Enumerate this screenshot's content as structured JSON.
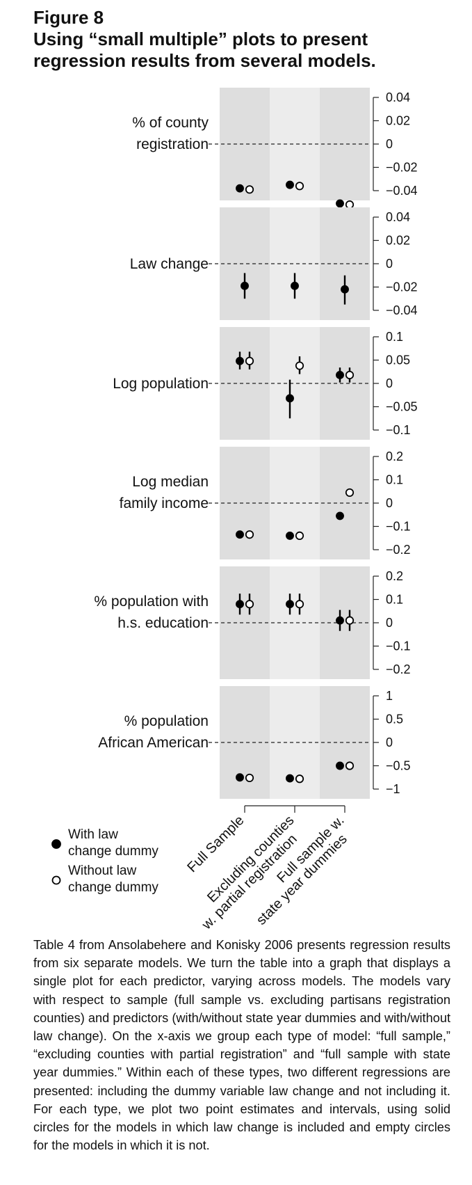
{
  "figure": {
    "label": "Figure 8",
    "title": "Using “small multiple” plots to present regression results from several models."
  },
  "chart_data": {
    "type": "scatter",
    "model_groups": [
      "Full Sample",
      "Excluding counties w. partial registration",
      "Full sample w. state year dummies"
    ],
    "legend": [
      {
        "name": "With law change dummy",
        "marker": "filled-circle"
      },
      {
        "name": "Without law change dummy",
        "marker": "open-circle"
      }
    ],
    "panels": [
      {
        "label": [
          "% of county",
          "registration"
        ],
        "ylim": [
          -0.04,
          0.04
        ],
        "ticks": [
          0.04,
          0.02,
          0,
          -0.02,
          -0.04
        ],
        "tick_labels": [
          "0.04",
          "0.02",
          "0",
          "−0.02",
          "−0.04"
        ],
        "with_dummy": [
          {
            "est": -0.038,
            "lo": -0.041,
            "hi": -0.035
          },
          {
            "est": -0.035,
            "lo": -0.038,
            "hi": -0.032
          },
          {
            "est": -0.051,
            "lo": -0.054,
            "hi": -0.048
          }
        ],
        "without_dummy": [
          {
            "est": -0.039,
            "lo": -0.042,
            "hi": -0.036
          },
          {
            "est": -0.036,
            "lo": -0.039,
            "hi": -0.033
          },
          {
            "est": -0.052,
            "lo": -0.055,
            "hi": -0.049
          }
        ]
      },
      {
        "label": [
          "Law change"
        ],
        "ylim": [
          -0.04,
          0.04
        ],
        "ticks": [
          0.04,
          0.02,
          0,
          -0.02,
          -0.04
        ],
        "tick_labels": [
          "0.04",
          "0.02",
          "0",
          "−0.02",
          "−0.04"
        ],
        "with_dummy": [
          {
            "est": -0.019,
            "lo": -0.03,
            "hi": -0.008
          },
          {
            "est": -0.019,
            "lo": -0.03,
            "hi": -0.008
          },
          {
            "est": -0.022,
            "lo": -0.035,
            "hi": -0.01
          }
        ],
        "without_dummy": []
      },
      {
        "label": [
          "Log population"
        ],
        "ylim": [
          -0.1,
          0.1
        ],
        "ticks": [
          0.1,
          0.05,
          0,
          -0.05,
          -0.1
        ],
        "tick_labels": [
          "0.1",
          "0.05",
          "0",
          "−0.05",
          "−0.1"
        ],
        "with_dummy": [
          {
            "est": 0.048,
            "lo": 0.03,
            "hi": 0.068
          },
          {
            "est": -0.032,
            "lo": -0.075,
            "hi": 0.008
          },
          {
            "est": 0.018,
            "lo": 0.002,
            "hi": 0.034
          }
        ],
        "without_dummy": [
          {
            "est": 0.048,
            "lo": 0.03,
            "hi": 0.068
          },
          {
            "est": 0.038,
            "lo": 0.02,
            "hi": 0.058
          },
          {
            "est": 0.018,
            "lo": 0.002,
            "hi": 0.034
          }
        ]
      },
      {
        "label": [
          "Log median",
          "family income"
        ],
        "ylim": [
          -0.2,
          0.2
        ],
        "ticks": [
          0.2,
          0.1,
          0,
          -0.1,
          -0.2
        ],
        "tick_labels": [
          "0.2",
          "0.1",
          "0",
          "−0.1",
          "−0.2"
        ],
        "with_dummy": [
          {
            "est": -0.135,
            "lo": -0.148,
            "hi": -0.122
          },
          {
            "est": -0.14,
            "lo": -0.153,
            "hi": -0.127
          },
          {
            "est": -0.055,
            "lo": -0.068,
            "hi": -0.042
          }
        ],
        "without_dummy": [
          {
            "est": -0.135,
            "lo": -0.148,
            "hi": -0.122
          },
          {
            "est": -0.14,
            "lo": -0.153,
            "hi": -0.127
          },
          {
            "est": 0.045,
            "lo": 0.03,
            "hi": 0.06
          }
        ]
      },
      {
        "label": [
          "% population with",
          "h.s. education"
        ],
        "ylim": [
          -0.2,
          0.2
        ],
        "ticks": [
          0.2,
          0.1,
          0,
          -0.1,
          -0.2
        ],
        "tick_labels": [
          "0.2",
          "0.1",
          "0",
          "−0.1",
          "−0.2"
        ],
        "with_dummy": [
          {
            "est": 0.08,
            "lo": 0.035,
            "hi": 0.125
          },
          {
            "est": 0.08,
            "lo": 0.035,
            "hi": 0.125
          },
          {
            "est": 0.01,
            "lo": -0.035,
            "hi": 0.055
          }
        ],
        "without_dummy": [
          {
            "est": 0.08,
            "lo": 0.035,
            "hi": 0.125
          },
          {
            "est": 0.08,
            "lo": 0.035,
            "hi": 0.125
          },
          {
            "est": 0.01,
            "lo": -0.035,
            "hi": 0.055
          }
        ]
      },
      {
        "label": [
          "% population",
          "African American"
        ],
        "ylim": [
          -1,
          1
        ],
        "ticks": [
          1,
          0.5,
          0,
          -0.5,
          -1
        ],
        "tick_labels": [
          "1",
          "0.5",
          "0",
          "−0.5",
          "−1"
        ],
        "with_dummy": [
          {
            "est": -0.75,
            "lo": -0.79,
            "hi": -0.71
          },
          {
            "est": -0.77,
            "lo": -0.81,
            "hi": -0.73
          },
          {
            "est": -0.5,
            "lo": -0.54,
            "hi": -0.46
          }
        ],
        "without_dummy": [
          {
            "est": -0.76,
            "lo": -0.8,
            "hi": -0.72
          },
          {
            "est": -0.78,
            "lo": -0.82,
            "hi": -0.74
          },
          {
            "est": -0.5,
            "lo": -0.54,
            "hi": -0.46
          }
        ]
      }
    ],
    "reference_line": 0,
    "grid": false
  },
  "x_labels": [
    {
      "lines": [
        "Full Sample"
      ]
    },
    {
      "lines": [
        "Excluding counties",
        "w. partial registration"
      ]
    },
    {
      "lines": [
        "Full sample w.",
        "state year dummies"
      ]
    }
  ],
  "caption": "Table 4 from Ansolabehere and Konisky 2006 presents regression results from six separate models. We turn the table into a graph that displays a single plot for each predictor, varying across models. The models vary with respect to sample (full sample vs. excluding partisans registration counties) and predictors (with/without state year dummies and with/without law change). On the x-axis we group each type of model: “full sample,” “excluding counties with partial registration” and “full sample with state year dummies.” Within each of these types, two different regressions are presented: including the dummy variable law change and not including it. For each type, we plot two point estimates and intervals, using solid circles for the models in which law change is included and empty circles for the models in which it is not."
}
